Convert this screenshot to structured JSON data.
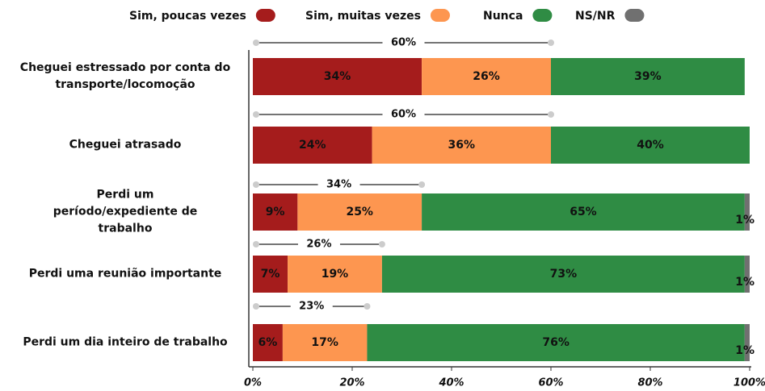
{
  "chart_data": {
    "type": "stacked-barh",
    "categories": [
      "Cheguei estressado por conta do transporte/locomoção",
      "Cheguei atrasado",
      "Perdi um período/expediente de trabalho",
      "Perdi uma reunião importante",
      "Perdi um dia inteiro de trabalho"
    ],
    "series": [
      {
        "name": "Sim, poucas vezes",
        "color": "#a51c1c",
        "values": [
          34,
          24,
          9,
          7,
          6
        ],
        "value_labels": [
          "34%",
          "24%",
          "9%",
          "7%",
          "6%"
        ]
      },
      {
        "name": "Sim, muitas vezes",
        "color": "#fd9650",
        "values": [
          26,
          36,
          25,
          19,
          17
        ],
        "value_labels": [
          "26%",
          "36%",
          "25%",
          "19%",
          "17%"
        ]
      },
      {
        "name": "Nunca",
        "color": "#2f8c44",
        "values": [
          39,
          40,
          65,
          73,
          76
        ],
        "value_labels": [
          "39%",
          "40%",
          "65%",
          "73%",
          "76%"
        ]
      },
      {
        "name": "NS/NR",
        "color": "#707070",
        "values": [
          null,
          null,
          1,
          1,
          1
        ],
        "value_labels": [
          null,
          null,
          "1%",
          "1%",
          "1%"
        ]
      }
    ],
    "totals": {
      "values": [
        60,
        60,
        34,
        26,
        23
      ],
      "value_labels": [
        "60%",
        "60%",
        "34%",
        "26%",
        "23%"
      ]
    },
    "xlim": [
      0,
      100
    ],
    "xticks": [
      {
        "value": 0,
        "label": "0%"
      },
      {
        "value": 20,
        "label": "20%"
      },
      {
        "value": 40,
        "label": "40%"
      },
      {
        "value": 60,
        "label": "60%"
      },
      {
        "value": 80,
        "label": "80%"
      },
      {
        "value": 100,
        "label": "100%"
      }
    ],
    "legend": "top"
  }
}
